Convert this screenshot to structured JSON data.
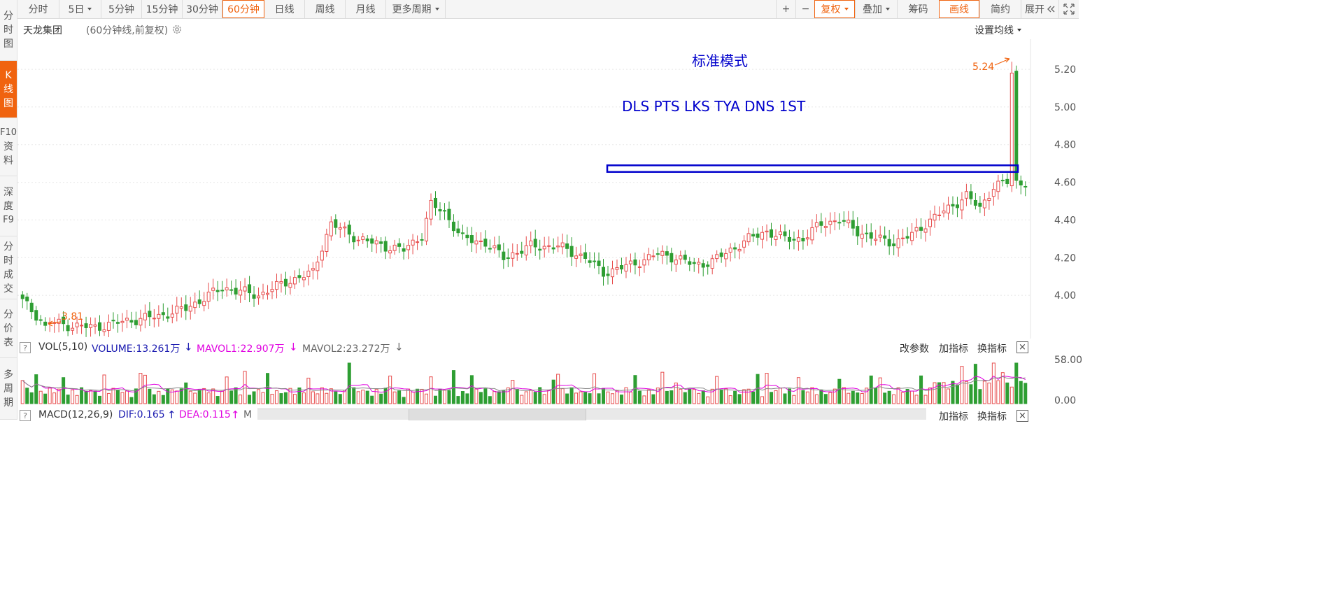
{
  "sidebar": {
    "tabs": [
      {
        "label": "分时图",
        "chars": [
          "分",
          "时",
          "图"
        ],
        "active": false
      },
      {
        "label": "K线图",
        "chars": [
          "K",
          "线",
          "图"
        ],
        "active": true
      },
      {
        "label": "F10资料",
        "chars": [
          "F10",
          "资",
          "料"
        ],
        "active": false
      },
      {
        "label": "深度F9",
        "chars": [
          "深",
          "度",
          "F9"
        ],
        "active": false
      },
      {
        "label": "分时成交",
        "chars": [
          "分",
          "时",
          "成",
          "交"
        ],
        "active": false
      },
      {
        "label": "分价表",
        "chars": [
          "分",
          "价",
          "表"
        ],
        "active": false
      },
      {
        "label": "多周期",
        "chars": [
          "多",
          "周",
          "期"
        ],
        "active": false
      }
    ]
  },
  "toolbar": {
    "periods": [
      {
        "label": "分时",
        "dropdown": false,
        "active": false
      },
      {
        "label": "5日",
        "dropdown": true,
        "active": false
      },
      {
        "label": "5分钟",
        "dropdown": false,
        "active": false
      },
      {
        "label": "15分钟",
        "dropdown": false,
        "active": false
      },
      {
        "label": "30分钟",
        "dropdown": false,
        "active": false
      },
      {
        "label": "60分钟",
        "dropdown": false,
        "active": true
      },
      {
        "label": "日线",
        "dropdown": false,
        "active": false
      },
      {
        "label": "周线",
        "dropdown": false,
        "active": false
      },
      {
        "label": "月线",
        "dropdown": false,
        "active": false
      },
      {
        "label": "更多周期",
        "dropdown": true,
        "active": false
      }
    ],
    "zoom_in": "+",
    "zoom_out": "−",
    "fuquan": "复权",
    "diejia": "叠加",
    "chouma": "筹码",
    "huaxian": "画线",
    "jianyue": "简约",
    "zhankai": "展开",
    "zhankai_icon": "double-chevron-left-icon",
    "fullscreen_icon": "fullscreen-icon"
  },
  "info": {
    "stock_name": "天龙集团",
    "chart_type": "(60分钟线,前复权)",
    "ma_setting": "设置均线"
  },
  "annotations": {
    "mode": "标准模式",
    "tags": "DLS PTS LKS TYA DNS 1ST",
    "high_label": "5.24",
    "low_label": "3.81"
  },
  "colors": {
    "up": "#e74c4c",
    "down": "#2e9e33",
    "accent": "#f0630f",
    "annotation_blue": "#0000cc",
    "mavol1": "#e000e0",
    "volume_label": "#1a1ab0"
  },
  "volume": {
    "help": "?",
    "title": "VOL(5,10)",
    "volume": "VOLUME:13.261万",
    "volume_arrow": "↓",
    "mavol1": "MAVOL1:22.907万",
    "mavol1_arrow": "↓",
    "mavol2": "MAVOL2:23.272万",
    "mavol2_arrow": "↓",
    "tools": [
      "改参数",
      "加指标",
      "换指标"
    ],
    "close": "×",
    "axis": [
      "58.00",
      "0.00"
    ]
  },
  "macd": {
    "help": "?",
    "title": "MACD(12,26,9)",
    "dif": "DIF:0.165",
    "dif_arrow": "↑",
    "dea": "DEA:0.115",
    "dea_arrow": "↑",
    "more": "M",
    "tools": [
      "加指标",
      "换指标"
    ],
    "close": "×"
  },
  "chart_data": {
    "type": "candlestick",
    "price_axis": {
      "ticks": [
        "5.20",
        "5.00",
        "4.80",
        "4.60",
        "4.40",
        "4.20",
        "4.00"
      ],
      "range": [
        3.77,
        5.36
      ]
    },
    "high": 5.24,
    "low": 3.81,
    "resistance_band": {
      "from": 4.655,
      "to": 4.69
    },
    "bar_count": 222,
    "path": [
      [
        0,
        3.97
      ],
      [
        4,
        3.87
      ],
      [
        10,
        3.84
      ],
      [
        16,
        3.83
      ],
      [
        22,
        3.86
      ],
      [
        30,
        3.89
      ],
      [
        36,
        3.93
      ],
      [
        44,
        4.04
      ],
      [
        52,
        4.0
      ],
      [
        58,
        4.07
      ],
      [
        64,
        4.12
      ],
      [
        66,
        4.26
      ],
      [
        68,
        4.38
      ],
      [
        74,
        4.3
      ],
      [
        80,
        4.26
      ],
      [
        84,
        4.24
      ],
      [
        88,
        4.32
      ],
      [
        90,
        4.48
      ],
      [
        93,
        4.44
      ],
      [
        97,
        4.3
      ],
      [
        102,
        4.28
      ],
      [
        106,
        4.2
      ],
      [
        112,
        4.26
      ],
      [
        118,
        4.26
      ],
      [
        124,
        4.2
      ],
      [
        128,
        4.12
      ],
      [
        134,
        4.16
      ],
      [
        140,
        4.22
      ],
      [
        144,
        4.2
      ],
      [
        148,
        4.16
      ],
      [
        152,
        4.18
      ],
      [
        156,
        4.24
      ],
      [
        160,
        4.3
      ],
      [
        164,
        4.34
      ],
      [
        168,
        4.3
      ],
      [
        172,
        4.3
      ],
      [
        176,
        4.38
      ],
      [
        180,
        4.4
      ],
      [
        184,
        4.34
      ],
      [
        188,
        4.3
      ],
      [
        192,
        4.28
      ],
      [
        196,
        4.32
      ],
      [
        200,
        4.4
      ],
      [
        204,
        4.46
      ],
      [
        208,
        4.53
      ],
      [
        211,
        4.46
      ],
      [
        214,
        4.58
      ],
      [
        217,
        4.6
      ],
      [
        222,
        4.6
      ]
    ]
  }
}
